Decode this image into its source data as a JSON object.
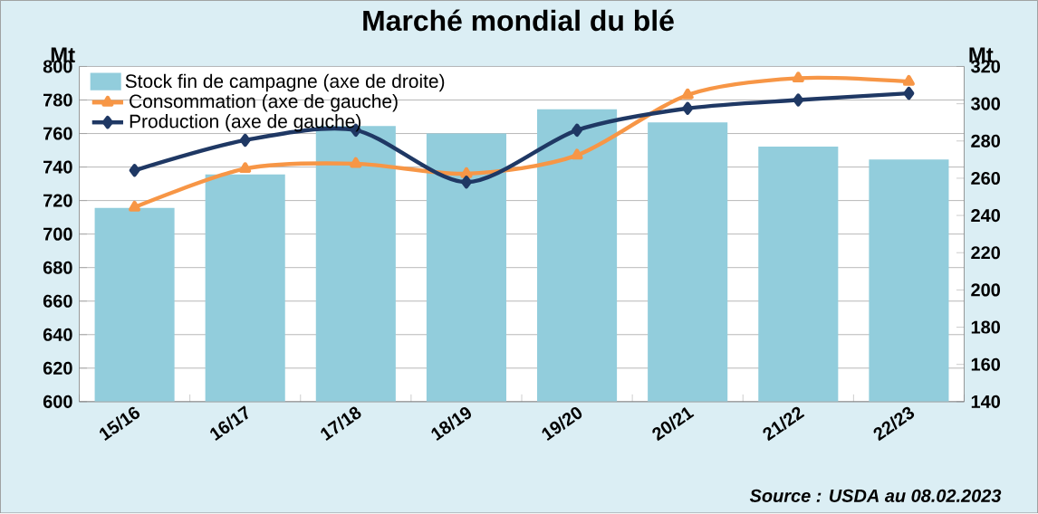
{
  "chart_data": {
    "type": "bar",
    "title": "Marché mondial du blé",
    "ylabel": "Mt",
    "y2label": "Mt",
    "categories": [
      "15/16",
      "16/17",
      "17/18",
      "18/19",
      "19/20",
      "20/21",
      "21/22",
      "22/23"
    ],
    "series": [
      {
        "name": "Stock fin de campagne (axe de droite)",
        "axis": "y2",
        "color": "#92cddc",
        "values": [
          244,
          262,
          288,
          284,
          297,
          290,
          277,
          270
        ]
      },
      {
        "name": "Consommation (axe de gauche)",
        "type": "line",
        "color": "#f79646",
        "marker": "triangle",
        "values": [
          716,
          739,
          742,
          736,
          747,
          783,
          793,
          791
        ]
      },
      {
        "name": "Production (axe de gauche)",
        "type": "line",
        "color": "#1f3864",
        "marker": "diamond",
        "values": [
          738,
          756,
          762,
          731,
          762,
          775,
          780,
          784
        ]
      }
    ],
    "ylim": [
      600,
      800
    ],
    "yticks": [
      600,
      620,
      640,
      660,
      680,
      700,
      720,
      740,
      760,
      780,
      800
    ],
    "y2lim": [
      140,
      320
    ],
    "y2ticks": [
      140,
      160,
      180,
      200,
      220,
      240,
      260,
      280,
      300,
      320
    ],
    "grid": "y",
    "legend": "top left",
    "annotations": [
      "Source : USDA au 08.02.2023"
    ]
  }
}
